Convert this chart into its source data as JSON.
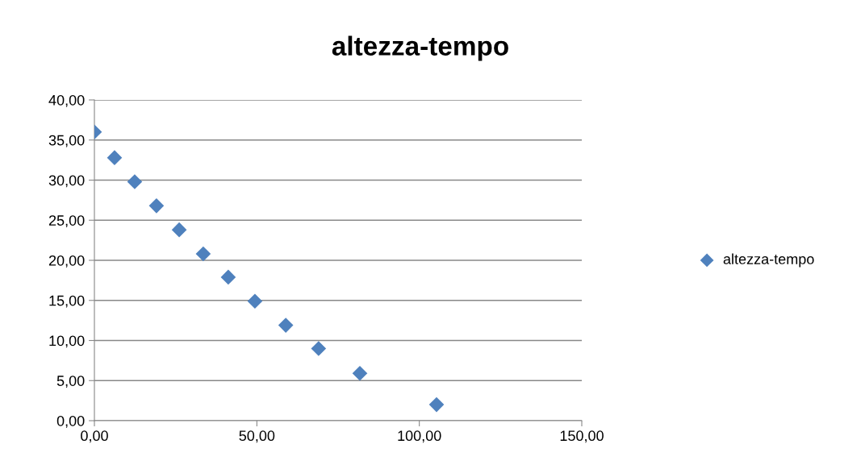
{
  "chart_data": {
    "type": "scatter",
    "title": "altezza-tempo",
    "x": [
      0,
      6.2,
      12.4,
      19.1,
      26.1,
      33.5,
      41.2,
      49.4,
      58.9,
      69.0,
      81.7,
      105.3
    ],
    "series": [
      {
        "name": "altezza-tempo",
        "color": "#4f81bd",
        "values": [
          36,
          32.8,
          29.8,
          26.8,
          23.8,
          20.8,
          17.9,
          14.9,
          11.9,
          9.0,
          5.9,
          2.0
        ]
      }
    ],
    "xlim": [
      0,
      150
    ],
    "xticks": [
      {
        "value": 0,
        "label": "0,00"
      },
      {
        "value": 50,
        "label": "50,00"
      },
      {
        "value": 100,
        "label": "100,00"
      },
      {
        "value": 150,
        "label": "150,00"
      }
    ],
    "ylim": [
      0,
      40
    ],
    "yticks": [
      {
        "value": 0,
        "label": "0,00"
      },
      {
        "value": 5,
        "label": "5,00"
      },
      {
        "value": 10,
        "label": "10,00"
      },
      {
        "value": 15,
        "label": "15,00"
      },
      {
        "value": 20,
        "label": "20,00"
      },
      {
        "value": 25,
        "label": "25,00"
      },
      {
        "value": 30,
        "label": "30,00"
      },
      {
        "value": 35,
        "label": "35,00"
      },
      {
        "value": 40,
        "label": "40,00"
      }
    ],
    "grid": "y",
    "legend": "right",
    "marker": "diamond"
  }
}
